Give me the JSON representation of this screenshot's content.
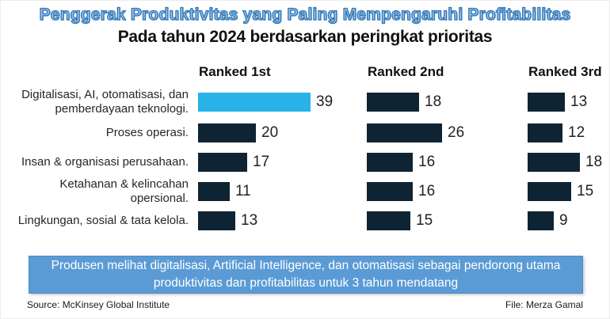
{
  "title": "Penggerak Produktivitas yang Paling Mempengaruhi Profitabilitas",
  "subtitle": "Pada tahun 2024 berdasarkan peringkat prioritas",
  "chart_data": {
    "type": "bar",
    "orientation": "horizontal",
    "categories": [
      "Digitalisasi, AI, otomatisasi, dan pemberdayaan teknologi.",
      "Proses operasi.",
      "Insan & organisasi perusahaan.",
      "Ketahanan & kelincahan opersional.",
      "Lingkungan, sosial & tata kelola."
    ],
    "series": [
      {
        "name": "Ranked 1st",
        "values": [
          39,
          20,
          17,
          11,
          13
        ]
      },
      {
        "name": "Ranked 2nd",
        "values": [
          18,
          26,
          16,
          16,
          15
        ]
      },
      {
        "name": "Ranked 3rd",
        "values": [
          13,
          12,
          18,
          15,
          9
        ]
      }
    ],
    "highlight": {
      "series": "Ranked 1st",
      "category_index": 0,
      "value": 39
    },
    "value_labels": "shown at end of each bar",
    "grid": "off",
    "axis": "none"
  },
  "banner": {
    "text": "Produsen melihat digitalisasi, Artificial Intelligence, dan otomatisasi sebagai pendorong utama produktivitas dan profitabilitas untuk 3 tahun mendatang"
  },
  "footer": {
    "source": "Source: McKinsey Global Institute",
    "file": "File: Merza Gamal"
  },
  "colors": {
    "highlight_bar": "#29B2E8",
    "bar": "#0E2433",
    "banner_bg": "#5B9BD5",
    "banner_text": "#FFFFFF",
    "title_fill": "#9DC3E6",
    "title_outline": "#2E75B6"
  }
}
